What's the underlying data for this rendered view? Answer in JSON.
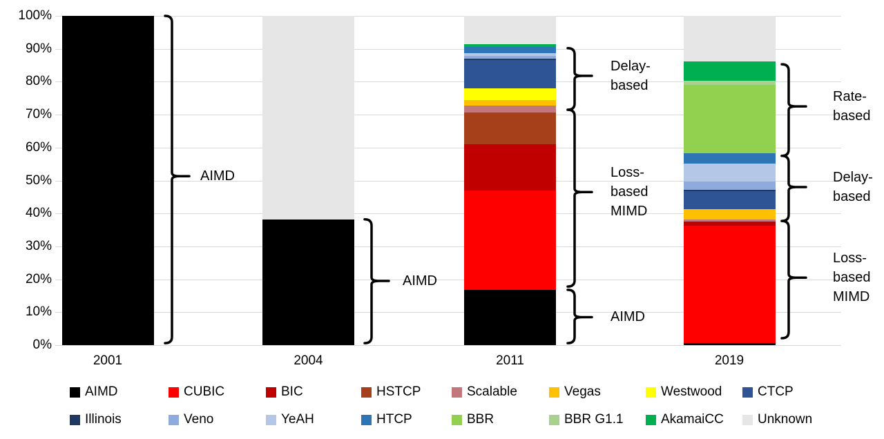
{
  "chart_data": {
    "type": "bar",
    "stacked": true,
    "title": "",
    "xlabel": "",
    "ylabel": "",
    "ylim": [
      0,
      100
    ],
    "grid": true,
    "legend_position": "bottom",
    "categories": [
      "2001",
      "2004",
      "2011",
      "2019"
    ],
    "ytick_labels": [
      "0%",
      "10%",
      "20%",
      "30%",
      "40%",
      "50%",
      "60%",
      "70%",
      "80%",
      "90%",
      "100%"
    ],
    "series": [
      {
        "name": "AIMD",
        "color": "#000000",
        "values": [
          100,
          38.2,
          16.8,
          0.6
        ]
      },
      {
        "name": "CUBIC",
        "color": "#FF0000",
        "values": [
          0,
          0,
          30.2,
          35.7
        ]
      },
      {
        "name": "BIC",
        "color": "#C00000",
        "values": [
          0,
          0,
          14.0,
          1.2
        ]
      },
      {
        "name": "HSTCP",
        "color": "#A6401A",
        "values": [
          0,
          0,
          9.6,
          0
        ]
      },
      {
        "name": "Scalable",
        "color": "#C4767D",
        "values": [
          0,
          0,
          2.1,
          0.7
        ]
      },
      {
        "name": "Vegas",
        "color": "#FFC000",
        "values": [
          0,
          0,
          1.7,
          3.1
        ]
      },
      {
        "name": "Westwood",
        "color": "#FFFF00",
        "values": [
          0,
          0,
          3.6,
          0
        ]
      },
      {
        "name": "CTCP",
        "color": "#2F5496",
        "values": [
          0,
          0,
          8.5,
          5.4
        ]
      },
      {
        "name": "Illinois",
        "color": "#1F3864",
        "values": [
          0,
          0,
          0.5,
          0.5
        ]
      },
      {
        "name": "Veno",
        "color": "#8FAADC",
        "values": [
          0,
          0,
          0.8,
          2.5
        ]
      },
      {
        "name": "YeAH",
        "color": "#B4C7E7",
        "values": [
          0,
          0,
          0.9,
          5.5
        ]
      },
      {
        "name": "HTCP",
        "color": "#2E75B6",
        "values": [
          0,
          0,
          1.9,
          3.1
        ]
      },
      {
        "name": "BBR",
        "color": "#92D050",
        "values": [
          0,
          0,
          0,
          20.7
        ]
      },
      {
        "name": "BBR G1.1",
        "color": "#A9D18E",
        "values": [
          0,
          0,
          0,
          1.3
        ]
      },
      {
        "name": "AkamaiCC",
        "color": "#00B050",
        "values": [
          0,
          0,
          0.7,
          5.9
        ]
      },
      {
        "name": "Unknown",
        "color": "#E7E6E6",
        "values": [
          0,
          61.8,
          8.7,
          13.8
        ]
      }
    ],
    "annotations": [
      {
        "bar": 0,
        "label": "AIMD",
        "from_pct": 0.6,
        "to_pct": 100,
        "cusp_pct": 51.3
      },
      {
        "bar": 1,
        "label": "AIMD",
        "from_pct": 0.6,
        "to_pct": 38.2,
        "cusp_pct": 19.5
      },
      {
        "bar": 2,
        "label": "Delay-\nbased",
        "from_pct": 71.5,
        "to_pct": 90.2,
        "cusp_pct": 81.8
      },
      {
        "bar": 2,
        "label": "Loss-\nbased\nMIMD",
        "from_pct": 17.8,
        "to_pct": 71.5,
        "cusp_pct": 46.5
      },
      {
        "bar": 2,
        "label": "AIMD",
        "from_pct": 0.6,
        "to_pct": 16.8,
        "cusp_pct": 8.5
      },
      {
        "bar": 3,
        "label": "Rate-\nbased",
        "from_pct": 57.5,
        "to_pct": 85.3,
        "cusp_pct": 72.5
      },
      {
        "bar": 3,
        "label": "Delay-\nbased",
        "from_pct": 37.7,
        "to_pct": 57.5,
        "cusp_pct": 48.0
      },
      {
        "bar": 3,
        "label": "Loss-\nbased\nMIMD",
        "from_pct": 2.1,
        "to_pct": 37.7,
        "cusp_pct": 20.5
      }
    ]
  },
  "colors": {
    "background": "#FFFFFF",
    "gridline": "#D9D9D9",
    "brace": "#000000"
  }
}
